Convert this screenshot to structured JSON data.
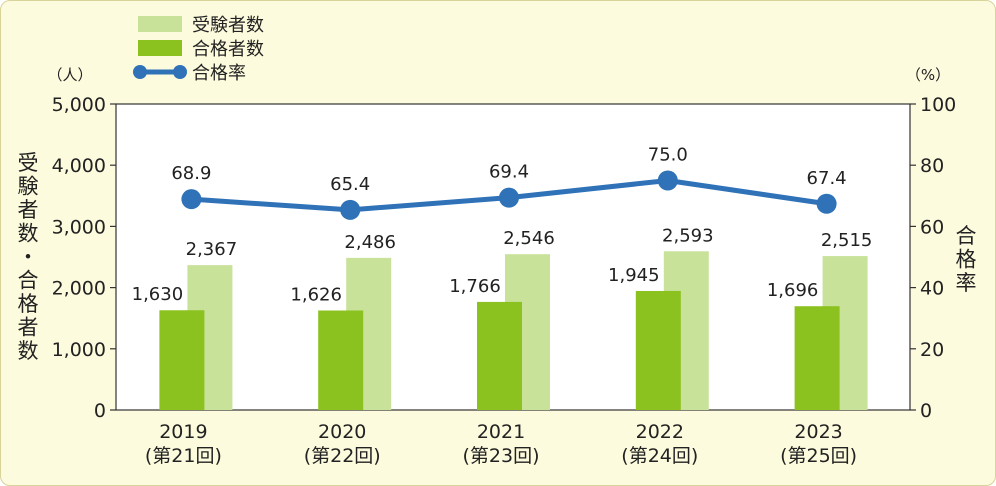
{
  "chart_data": {
    "type": "bar",
    "categories": [
      "2019",
      "2020",
      "2021",
      "2022",
      "2023"
    ],
    "category_sublabels": [
      "(第21回)",
      "(第22回)",
      "(第23回)",
      "(第24回)",
      "(第25回)"
    ],
    "series": [
      {
        "name": "受験者数",
        "type": "bar",
        "axis": "left",
        "color": "#c8e29a",
        "values": [
          2367,
          2486,
          2546,
          2593,
          2515
        ],
        "labels": [
          "2,367",
          "2,486",
          "2,546",
          "2,593",
          "2,515"
        ]
      },
      {
        "name": "合格者数",
        "type": "bar",
        "axis": "left",
        "color": "#8cc220",
        "values": [
          1630,
          1626,
          1766,
          1945,
          1696
        ],
        "labels": [
          "1,630",
          "1,626",
          "1,766",
          "1,945",
          "1,696"
        ]
      },
      {
        "name": "合格率",
        "type": "line",
        "axis": "right",
        "color": "#2f72b8",
        "values": [
          68.9,
          65.4,
          69.4,
          75.0,
          67.4
        ],
        "labels": [
          "68.9",
          "65.4",
          "69.4",
          "75.0",
          "67.4"
        ]
      }
    ],
    "left_axis": {
      "unit": "（人）",
      "label": "受験者数・合格者数",
      "ylim": [
        0,
        5000
      ],
      "ticks": [
        0,
        1000,
        2000,
        3000,
        4000,
        5000
      ],
      "tick_labels": [
        "0",
        "1,000",
        "2,000",
        "3,000",
        "4,000",
        "5,000"
      ]
    },
    "right_axis": {
      "unit": "（%）",
      "label": "合格率",
      "ylim": [
        0,
        100
      ],
      "ticks": [
        0,
        20,
        40,
        60,
        80,
        100
      ],
      "tick_labels": [
        "0",
        "20",
        "40",
        "60",
        "80",
        "100"
      ]
    },
    "legend_placement": "top-left",
    "grid": false
  }
}
